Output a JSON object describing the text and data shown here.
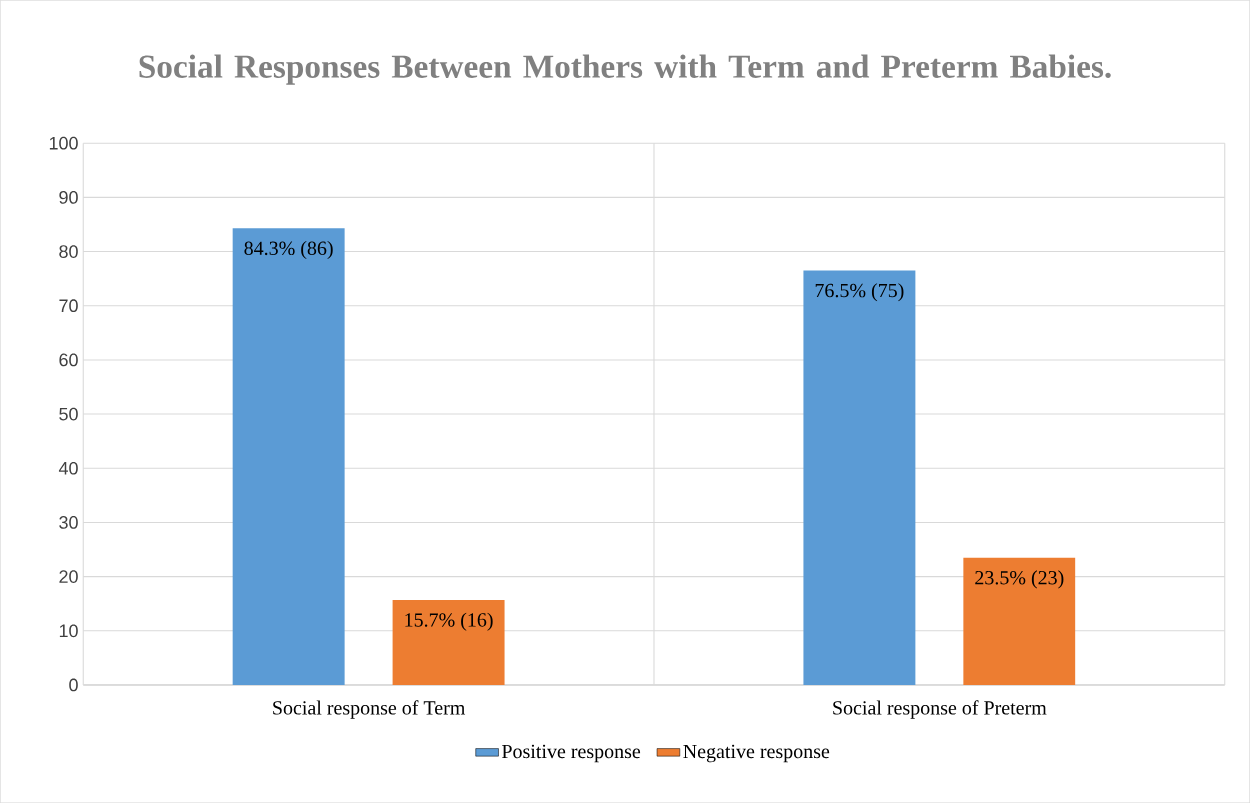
{
  "chart_data": {
    "type": "bar",
    "title": "Social Responses Between Mothers with Term and Preterm Babies.",
    "categories": [
      "Social response of Term",
      "Social response of Preterm"
    ],
    "series": [
      {
        "name": "Positive response",
        "color": "#5b9bd5",
        "values": [
          84.3,
          76.5
        ],
        "value_labels": [
          "84.3% (86)",
          "76.5% (75)"
        ]
      },
      {
        "name": "Negative response",
        "color": "#ed7d31",
        "values": [
          15.7,
          23.5
        ],
        "value_labels": [
          "15.7% (16)",
          "23.5% (23)"
        ]
      }
    ],
    "ylim": [
      0,
      100
    ],
    "yticks": [
      0,
      10,
      20,
      30,
      40,
      50,
      60,
      70,
      80,
      90,
      100
    ],
    "grid": true,
    "legend": "bottom"
  }
}
